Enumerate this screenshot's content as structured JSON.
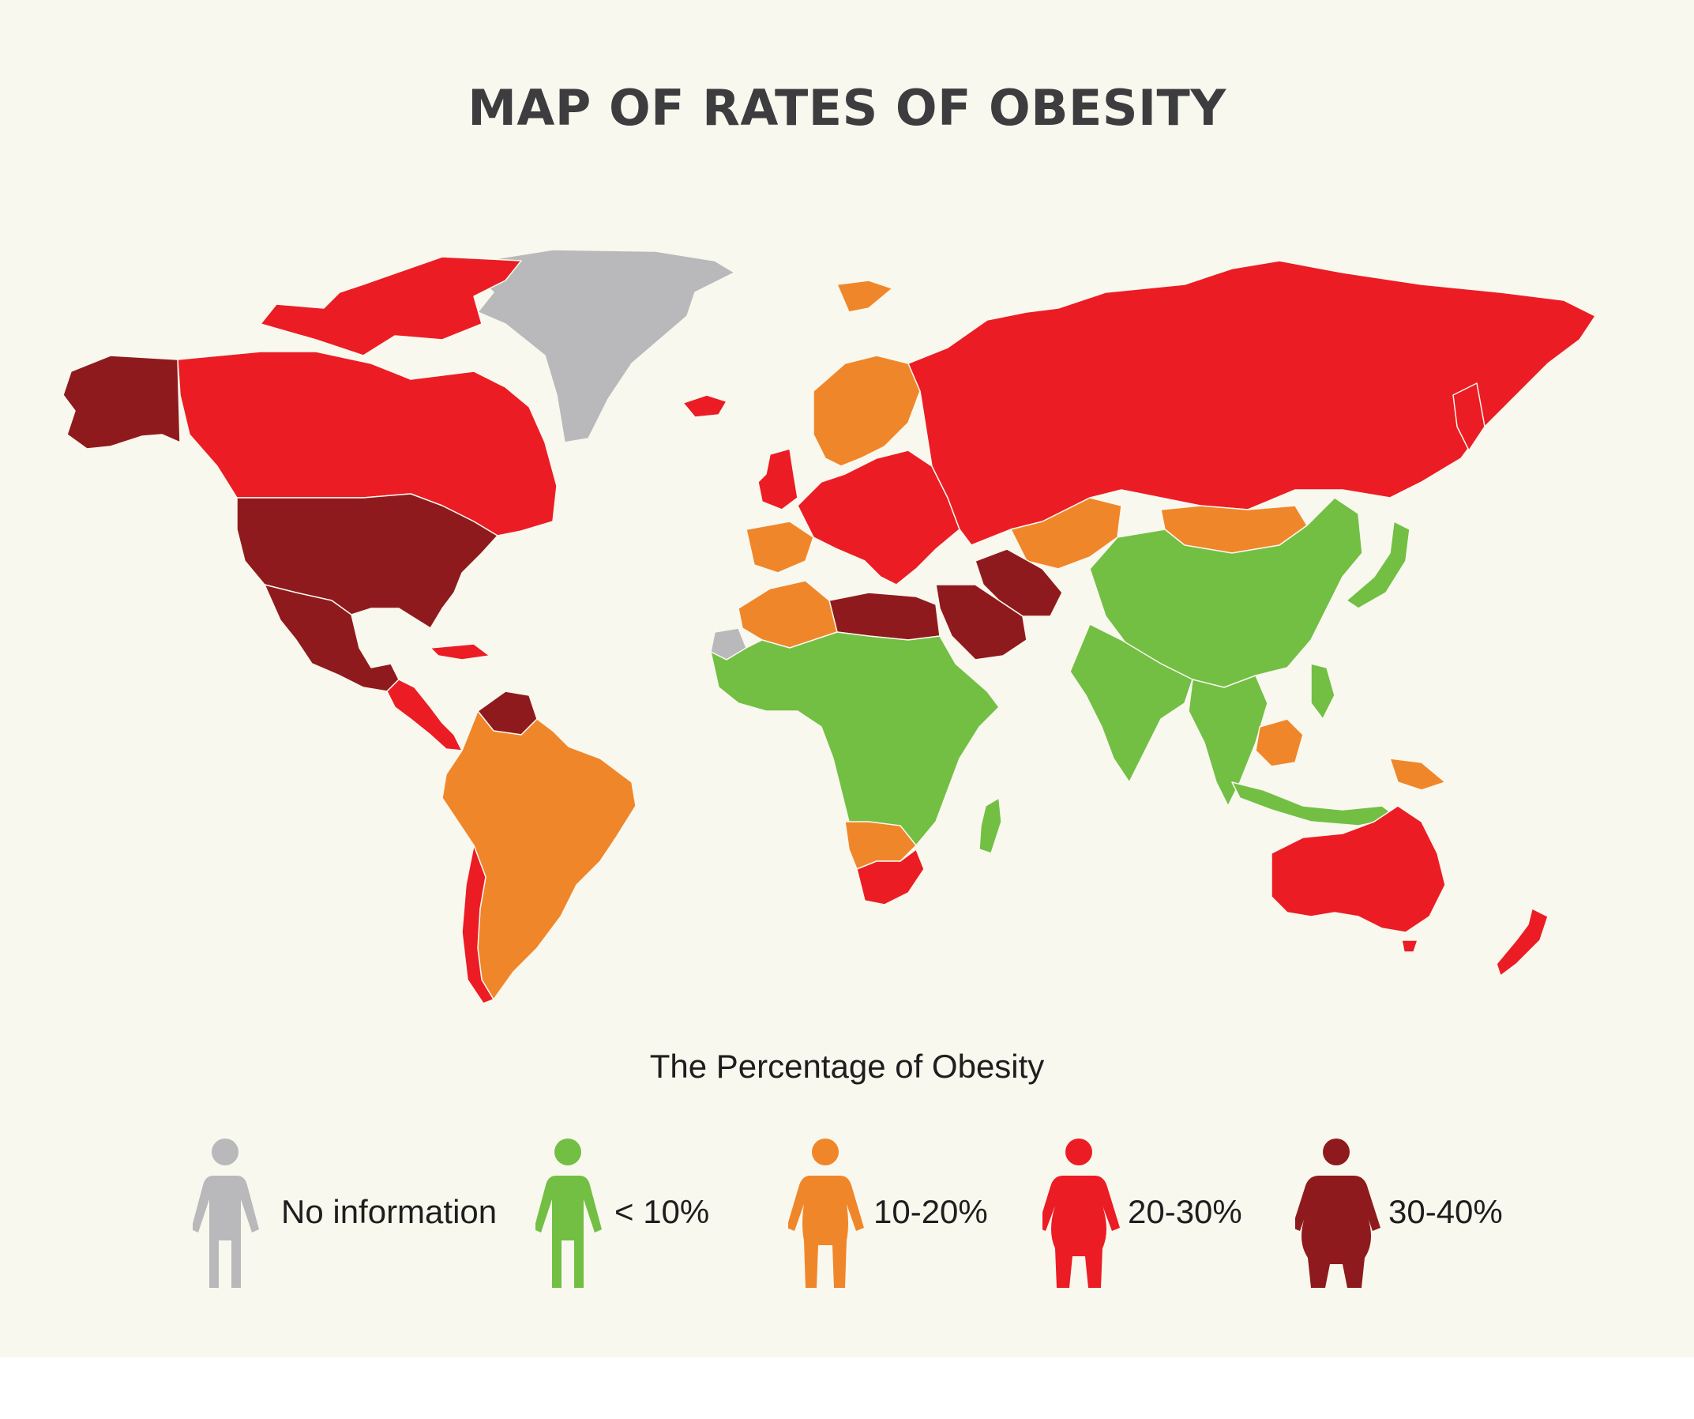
{
  "title": "MAP OF RATES OF OBESITY",
  "legend": {
    "title": "The Percentage of Obesity",
    "items": [
      {
        "label": "No information",
        "color": "#b9b9bb",
        "icon": "person-slim-icon"
      },
      {
        "label": "< 10%",
        "color": "#72bf44",
        "icon": "person-slim-icon"
      },
      {
        "label": "10-20%",
        "color": "#f0862a",
        "icon": "person-medium-icon"
      },
      {
        "label": "20-30%",
        "color": "#ec1c24",
        "icon": "person-heavy-icon"
      },
      {
        "label": "30-40%",
        "color": "#8f1a1d",
        "icon": "person-obese-icon"
      }
    ]
  },
  "map": {
    "background": "#f9f8ee",
    "regions": [
      {
        "name": "Greenland",
        "category": "No information"
      },
      {
        "name": "Canada",
        "category": "20-30%"
      },
      {
        "name": "Alaska",
        "category": "30-40%"
      },
      {
        "name": "United States",
        "category": "30-40%"
      },
      {
        "name": "Mexico",
        "category": "30-40%"
      },
      {
        "name": "Central America",
        "category": "20-30%"
      },
      {
        "name": "Venezuela",
        "category": "30-40%"
      },
      {
        "name": "South America",
        "category": "10-20%"
      },
      {
        "name": "Chile",
        "category": "20-30%"
      },
      {
        "name": "Iceland",
        "category": "20-30%"
      },
      {
        "name": "Scandinavia",
        "category": "10-20%"
      },
      {
        "name": "United Kingdom",
        "category": "20-30%"
      },
      {
        "name": "Europe",
        "category": "20-30%"
      },
      {
        "name": "Iberia",
        "category": "10-20%"
      },
      {
        "name": "Russia",
        "category": "20-30%"
      },
      {
        "name": "Mongolia",
        "category": "10-20%"
      },
      {
        "name": "China",
        "category": "< 10%"
      },
      {
        "name": "India",
        "category": "< 10%"
      },
      {
        "name": "Southeast Asia",
        "category": "< 10%"
      },
      {
        "name": "Japan",
        "category": "< 10%"
      },
      {
        "name": "Indonesia",
        "category": "< 10%"
      },
      {
        "name": "Borneo",
        "category": "10-20%"
      },
      {
        "name": "Papua New Guinea",
        "category": "10-20%"
      },
      {
        "name": "Central Asia",
        "category": "10-20%"
      },
      {
        "name": "Saudi Arabia",
        "category": "30-40%"
      },
      {
        "name": "Iran",
        "category": "30-40%"
      },
      {
        "name": "Libya and Egypt",
        "category": "30-40%"
      },
      {
        "name": "North Africa",
        "category": "10-20%"
      },
      {
        "name": "Western Sahara",
        "category": "No information"
      },
      {
        "name": "Sub-Saharan Africa",
        "category": "< 10%"
      },
      {
        "name": "Madagascar",
        "category": "< 10%"
      },
      {
        "name": "Southern Africa",
        "category": "10-20%"
      },
      {
        "name": "South Africa",
        "category": "20-30%"
      },
      {
        "name": "Australia",
        "category": "20-30%"
      },
      {
        "name": "New Zealand",
        "category": "20-30%"
      }
    ]
  }
}
